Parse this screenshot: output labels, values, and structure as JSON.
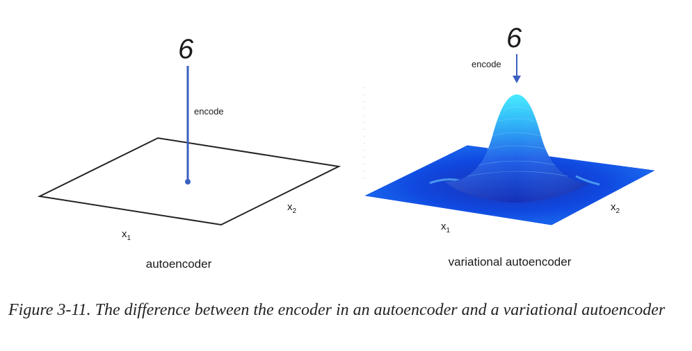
{
  "left_panel": {
    "digit": "6",
    "encode_label": "encode",
    "axis_x1_main": "x",
    "axis_x1_sub": "1",
    "axis_x2_main": "x",
    "axis_x2_sub": "2",
    "title": "autoencoder"
  },
  "right_panel": {
    "digit": "6",
    "encode_label": "encode",
    "axis_x1_main": "x",
    "axis_x1_sub": "1",
    "axis_x2_main": "x",
    "axis_x2_sub": "2",
    "title": "variational autoencoder"
  },
  "caption": {
    "text": "Figure 3-11. The difference between the encoder in an autoencoder and a variational autoencoder"
  },
  "colors": {
    "arrow": "#3a5fc0",
    "plane_outline": "#222222",
    "surface_base": "#1040e0",
    "surface_peak": "#40e8ff"
  }
}
